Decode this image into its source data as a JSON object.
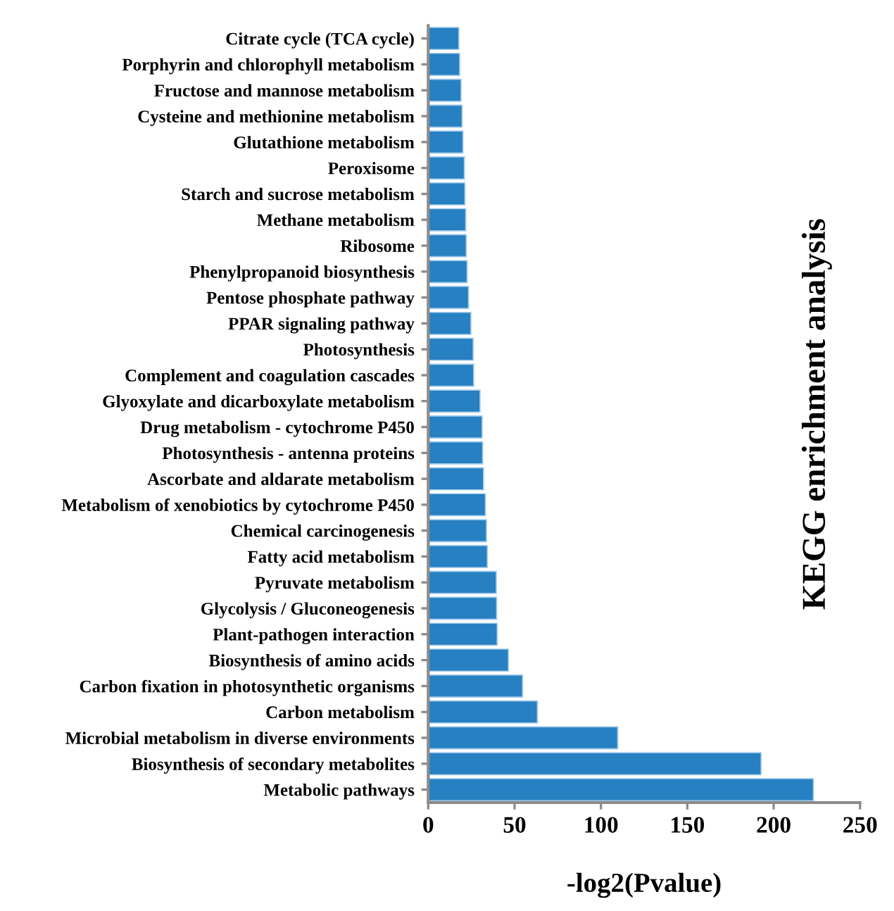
{
  "chart_data": {
    "type": "bar",
    "orientation": "horizontal",
    "title": "KEGG enrichment analysis",
    "xlabel": "-log2(Pvalue)",
    "categories": [
      "Citrate cycle (TCA cycle)",
      "Porphyrin and chlorophyll metabolism",
      "Fructose and mannose metabolism",
      "Cysteine and methionine metabolism",
      "Glutathione metabolism",
      "Peroxisome",
      "Starch and sucrose metabolism",
      "Methane metabolism",
      "Ribosome",
      "Phenylpropanoid biosynthesis",
      "Pentose phosphate pathway",
      "PPAR signaling pathway",
      "Photosynthesis",
      "Complement and coagulation cascades",
      "Glyoxylate and dicarboxylate metabolism",
      "Drug metabolism - cytochrome P450",
      "Photosynthesis - antenna proteins",
      "Ascorbate and aldarate metabolism",
      "Metabolism of xenobiotics by cytochrome P450",
      "Chemical carcinogenesis",
      "Fatty acid metabolism",
      "Pyruvate metabolism",
      "Glycolysis / Gluconeogenesis",
      "Plant-pathogen interaction",
      "Biosynthesis of amino acids",
      "Carbon fixation in photosynthetic organisms",
      "Carbon metabolism",
      "Microbial metabolism in diverse environments",
      "Biosynthesis of secondary metabolites",
      "Metabolic pathways"
    ],
    "values": [
      17.7,
      18.2,
      19.0,
      19.6,
      20.1,
      20.9,
      21.2,
      21.7,
      22.0,
      22.5,
      23.3,
      24.7,
      26.0,
      26.3,
      30.0,
      31.2,
      31.5,
      32.0,
      33.1,
      33.7,
      34.2,
      39.4,
      39.6,
      39.9,
      46.4,
      54.6,
      63.2,
      109.7,
      192.7,
      223
    ],
    "color": "#2680c2",
    "xlim": [
      0,
      250
    ],
    "xticks": [
      0,
      50,
      100,
      150,
      200,
      250
    ],
    "grid": false,
    "legend": false
  }
}
